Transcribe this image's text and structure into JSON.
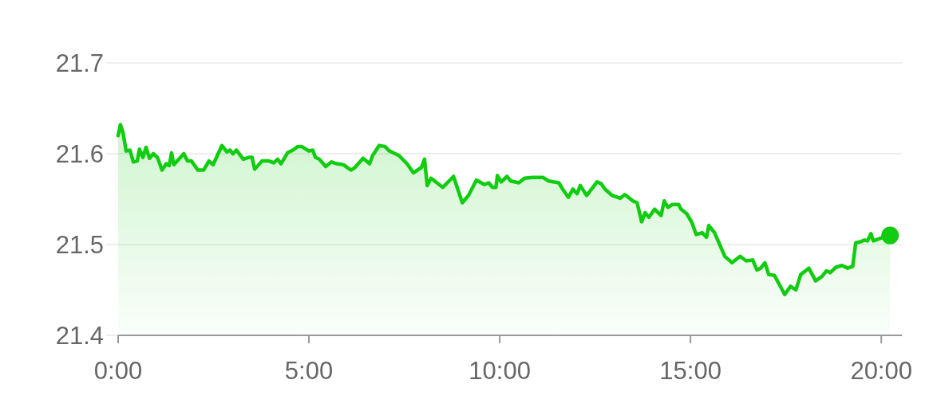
{
  "chart_data": {
    "type": "area",
    "xlim": [
      0,
      20.54
    ],
    "ylim": [
      21.4,
      21.7
    ],
    "xticks": [
      {
        "value": 0,
        "label": "0:00"
      },
      {
        "value": 5,
        "label": "5:00"
      },
      {
        "value": 10,
        "label": "10:00"
      },
      {
        "value": 15,
        "label": "15:00"
      },
      {
        "value": 20,
        "label": "20:00"
      }
    ],
    "yticks": [
      21.4,
      21.5,
      21.6,
      21.7
    ],
    "grid": "y",
    "series": [
      {
        "color": "#11cc11",
        "x": [
          0,
          0.06,
          0.13,
          0.21,
          0.31,
          0.4,
          0.5,
          0.56,
          0.65,
          0.73,
          0.82,
          0.92,
          1.03,
          1.15,
          1.26,
          1.34,
          1.4,
          1.46,
          1.72,
          1.82,
          1.92,
          2.09,
          2.24,
          2.38,
          2.49,
          2.72,
          2.85,
          2.93,
          3.01,
          3.1,
          3.28,
          3.43,
          3.51,
          3.58,
          3.77,
          3.95,
          4.08,
          4.18,
          4.27,
          4.44,
          4.58,
          4.71,
          4.81,
          5,
          5.1,
          5.17,
          5.27,
          5.44,
          5.59,
          5.73,
          5.9,
          6,
          6.11,
          6.21,
          6.42,
          6.59,
          6.67,
          6.84,
          6.99,
          7.11,
          7.36,
          7.57,
          7.74,
          7.95,
          8.03,
          8.1,
          8.2,
          8.51,
          8.79,
          9.02,
          9.18,
          9.39,
          9.6,
          9.71,
          9.81,
          9.9,
          9.94,
          10.04,
          10.19,
          10.29,
          10.5,
          10.65,
          10.86,
          11.13,
          11.28,
          11.55,
          11.65,
          11.8,
          11.92,
          12.03,
          12.11,
          12.28,
          12.55,
          12.66,
          12.76,
          12.95,
          13.16,
          13.28,
          13.49,
          13.6,
          13.72,
          13.81,
          13.91,
          14.06,
          14.23,
          14.31,
          14.41,
          14.52,
          14.69,
          14.75,
          14.9,
          15.04,
          15.15,
          15.31,
          15.42,
          15.48,
          15.63,
          15.9,
          16.09,
          16.3,
          16.46,
          16.63,
          16.74,
          16.84,
          16.95,
          17.05,
          17.2,
          17.47,
          17.62,
          17.76,
          17.89,
          18.1,
          18.28,
          18.45,
          18.56,
          18.66,
          18.81,
          18.97,
          19.12,
          19.25,
          19.33,
          19.46,
          19.56,
          19.64,
          19.73,
          19.79,
          19.98,
          20.23
        ],
        "values": [
          21.62,
          21.632,
          21.623,
          21.603,
          21.604,
          21.591,
          21.592,
          21.605,
          21.596,
          21.607,
          21.595,
          21.6,
          21.596,
          21.582,
          21.589,
          21.587,
          21.601,
          21.588,
          21.6,
          21.592,
          21.592,
          21.582,
          21.582,
          21.592,
          21.588,
          21.609,
          21.602,
          21.604,
          21.6,
          21.604,
          21.594,
          21.596,
          21.596,
          21.583,
          21.592,
          21.592,
          21.59,
          21.594,
          21.589,
          21.601,
          21.604,
          21.608,
          21.608,
          21.603,
          21.604,
          21.596,
          21.594,
          21.586,
          21.591,
          21.589,
          21.588,
          21.585,
          21.582,
          21.585,
          21.595,
          21.589,
          21.598,
          21.609,
          21.608,
          21.603,
          21.598,
          21.589,
          21.579,
          21.585,
          21.594,
          21.565,
          21.573,
          21.563,
          21.575,
          21.546,
          21.554,
          21.571,
          21.566,
          21.568,
          21.563,
          21.563,
          21.576,
          21.569,
          21.575,
          21.57,
          21.568,
          21.573,
          21.574,
          21.574,
          21.57,
          21.568,
          21.561,
          21.552,
          21.561,
          21.556,
          21.565,
          21.554,
          21.569,
          21.567,
          21.561,
          21.554,
          21.551,
          21.555,
          21.548,
          21.546,
          21.525,
          21.535,
          21.53,
          21.539,
          21.532,
          21.548,
          21.541,
          21.544,
          21.544,
          21.539,
          21.534,
          21.524,
          21.511,
          21.513,
          21.508,
          21.521,
          21.513,
          21.487,
          21.48,
          21.487,
          21.482,
          21.483,
          21.472,
          21.474,
          21.48,
          21.467,
          21.466,
          21.445,
          21.454,
          21.45,
          21.467,
          21.474,
          21.46,
          21.465,
          21.471,
          21.469,
          21.475,
          21.477,
          21.474,
          21.476,
          21.502,
          21.503,
          21.505,
          21.504,
          21.512,
          21.504,
          21.507,
          21.51
        ]
      },
      {
        "type": "scatter",
        "color": "#11cc11",
        "marker": "circle",
        "x": [
          20.23
        ],
        "values": [
          21.51
        ]
      }
    ]
  }
}
